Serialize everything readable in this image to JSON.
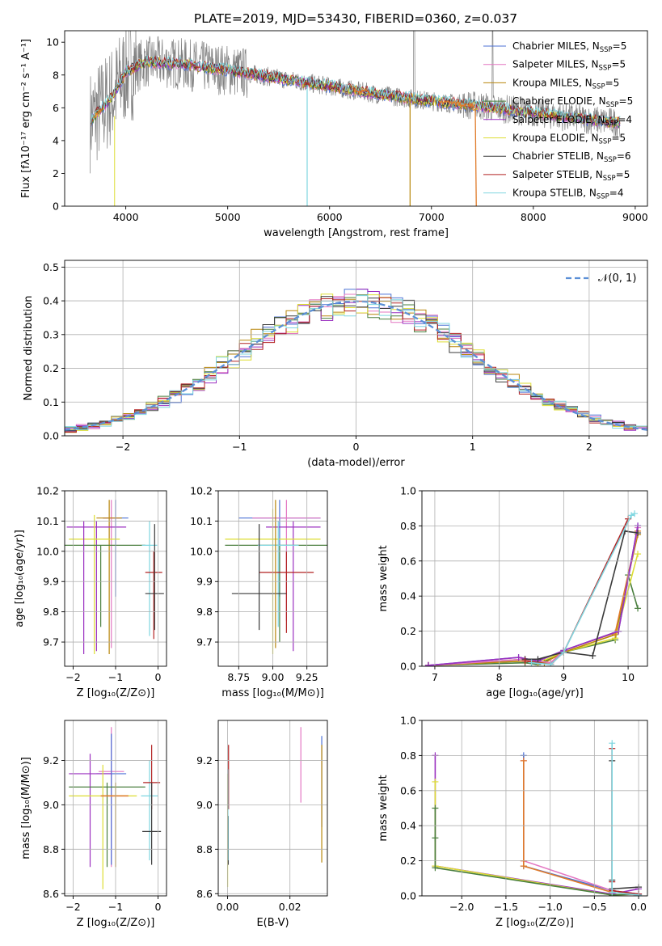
{
  "figure_title": "PLATE=2019, MJD=53430, FIBERID=0360, z=0.037",
  "colors": {
    "Chabrier MILES": "#4c72d6",
    "Salpeter MILES": "#e377c2",
    "Kroupa MILES": "#b8860b",
    "Chabrier ELODIE": "#4a7f3f",
    "Salpeter ELODIE": "#9b30c0",
    "Kroupa ELODIE": "#dddd33",
    "Chabrier STELIB": "#3a3a3a",
    "Salpeter STELIB": "#b22222",
    "Kroupa STELIB": "#7fd6e0",
    "orange": "#e07b2a",
    "data": "#808080",
    "normal": "#5b8fd6"
  },
  "chart_data": [
    {
      "id": "spectrum",
      "type": "line",
      "xlabel": "wavelength [Angstrom, rest frame]",
      "ylabel": "Flux [fλ10⁻¹⁷ erg cm⁻² s⁻¹ A⁻¹]",
      "xlim": [
        3400,
        9120
      ],
      "ylim": [
        0,
        10.7
      ],
      "xticks": [
        4000,
        5000,
        6000,
        7000,
        8000,
        9000
      ],
      "yticks": [
        0,
        2,
        4,
        6,
        8,
        10
      ],
      "legend_position": "top-right",
      "legend": [
        {
          "label": "Chabrier MILES, N",
          "sub": "SSP",
          "tail": "=5",
          "color": "#4c72d6"
        },
        {
          "label": "Salpeter MILES, N",
          "sub": "SSP",
          "tail": "=5",
          "color": "#e377c2"
        },
        {
          "label": "Kroupa MILES, N",
          "sub": "SSP",
          "tail": "=5",
          "color": "#b8860b"
        },
        {
          "label": "Chabrier ELODIE, N",
          "sub": "SSP",
          "tail": "=5",
          "color": "#4a7f3f"
        },
        {
          "label": "Salpeter ELODIE, N",
          "sub": "SSP",
          "tail": "=4",
          "color": "#9b30c0"
        },
        {
          "label": "Kroupa ELODIE, N",
          "sub": "SSP",
          "tail": "=5",
          "color": "#dddd33"
        },
        {
          "label": "Chabrier STELIB, N",
          "sub": "SSP",
          "tail": "=6",
          "color": "#3a3a3a"
        },
        {
          "label": "Salpeter STELIB, N",
          "sub": "SSP",
          "tail": "=5",
          "color": "#b22222"
        },
        {
          "label": "Kroupa STELIB, N",
          "sub": "SSP",
          "tail": "=4",
          "color": "#7fd6e0"
        }
      ],
      "continuum": [
        [
          3650,
          5.2
        ],
        [
          3800,
          6.2
        ],
        [
          3900,
          7.0
        ],
        [
          4000,
          8.2
        ],
        [
          4200,
          8.8
        ],
        [
          4500,
          8.7
        ],
        [
          5000,
          8.3
        ],
        [
          5500,
          7.8
        ],
        [
          6000,
          7.3
        ],
        [
          6500,
          6.8
        ],
        [
          7000,
          6.4
        ],
        [
          7500,
          6.1
        ],
        [
          8000,
          5.7
        ],
        [
          8500,
          5.3
        ],
        [
          8850,
          5.1
        ]
      ]
    },
    {
      "id": "residuals",
      "type": "histogram",
      "xlabel": "(data-model)/error",
      "ylabel": "Normed distribution",
      "xlim": [
        -2.5,
        2.5
      ],
      "ylim": [
        0,
        0.52
      ],
      "xticks": [
        -2,
        -1,
        0,
        1,
        2
      ],
      "xticklabels": [
        "−2",
        "−1",
        "0",
        "1",
        "2"
      ],
      "yticks": [
        0.0,
        0.1,
        0.2,
        0.3,
        0.4,
        0.5
      ],
      "yticklabels": [
        "0.0",
        "0.1",
        "0.2",
        "0.3",
        "0.4",
        "0.5"
      ],
      "bin_width": 0.1,
      "legend_label": "𝒩(0, 1)",
      "legend_position": "top-right",
      "grid": true
    },
    {
      "id": "age-vs-Z",
      "type": "errorbar",
      "xlabel": "Z [log₁₀(Z/Z⊙)]",
      "ylabel": "age  [log₁₀(age/yr)]",
      "xlim": [
        -2.2,
        0.2
      ],
      "ylim": [
        9.62,
        10.2
      ],
      "xticks": [
        -2,
        -1,
        0
      ],
      "xticklabels": [
        "−2",
        "−1",
        "0"
      ],
      "yticks": [
        9.7,
        9.8,
        9.9,
        10.0,
        10.1,
        10.2
      ],
      "yticklabels": [
        "9.7",
        "9.8",
        "9.9",
        "10.0",
        "10.1",
        "10.2"
      ]
    },
    {
      "id": "age-vs-mass",
      "type": "errorbar",
      "xlabel": "mass [log₁₀(M/M⊙)]",
      "xlim": [
        8.6,
        9.4
      ],
      "ylim": [
        9.62,
        10.2
      ],
      "xticks": [
        8.75,
        9.0,
        9.25
      ],
      "xticklabels": [
        "8.75",
        "9.00",
        "9.25"
      ],
      "yticks": [
        9.7,
        9.8,
        9.9,
        10.0,
        10.1,
        10.2
      ],
      "yticklabels": [
        "9.7",
        "9.8",
        "9.9",
        "10.0",
        "10.1",
        "10.2"
      ]
    },
    {
      "id": "weight-vs-age",
      "type": "line",
      "xlabel": "age  [log₁₀(age/yr)]",
      "ylabel": "mass weight",
      "xlim": [
        6.8,
        10.3
      ],
      "ylim": [
        0,
        1.0
      ],
      "xticks": [
        7,
        8,
        9,
        10
      ],
      "xticklabels": [
        "7",
        "8",
        "9",
        "10"
      ],
      "yticks": [
        0.0,
        0.2,
        0.4,
        0.6,
        0.8,
        1.0
      ],
      "yticklabels": [
        "0.0",
        "0.2",
        "0.4",
        "0.6",
        "0.8",
        "1.0"
      ]
    },
    {
      "id": "mass-vs-Z",
      "type": "errorbar",
      "xlabel": "Z [log₁₀(Z/Z⊙)]",
      "ylabel": "mass [log₁₀(M/M⊙)]",
      "xlim": [
        -2.2,
        0.2
      ],
      "ylim": [
        8.59,
        9.38
      ],
      "xticks": [
        -2,
        -1,
        0
      ],
      "xticklabels": [
        "−2",
        "−1",
        "0"
      ],
      "yticks": [
        8.6,
        8.8,
        9.0,
        9.2
      ],
      "yticklabels": [
        "8.6",
        "8.8",
        "9.0",
        "9.2"
      ]
    },
    {
      "id": "mass-vs-ebv",
      "type": "errorbar",
      "xlabel": "E(B-V)",
      "xlim": [
        -0.003,
        0.032
      ],
      "ylim": [
        8.59,
        9.38
      ],
      "xticks": [
        0.0,
        0.02
      ],
      "xticklabels": [
        "0.00",
        "0.02"
      ],
      "yticks": [
        8.6,
        8.8,
        9.0,
        9.2
      ],
      "yticklabels": [
        "8.6",
        "8.8",
        "9.0",
        "9.2"
      ]
    },
    {
      "id": "weight-vs-Z",
      "type": "line",
      "xlabel": "Z [log₁₀(Z/Z⊙)]",
      "ylabel": "mass weight",
      "xlim": [
        -2.45,
        0.1
      ],
      "ylim": [
        0,
        1.0
      ],
      "xticks": [
        -2.0,
        -1.5,
        -1.0,
        -0.5,
        0.0
      ],
      "xticklabels": [
        "−2.0",
        "−1.5",
        "−1.0",
        "−0.5",
        "0.0"
      ],
      "yticks": [
        0.0,
        0.2,
        0.4,
        0.6,
        0.8,
        1.0
      ],
      "yticklabels": [
        "0.0",
        "0.2",
        "0.4",
        "0.6",
        "0.8",
        "1.0"
      ]
    }
  ]
}
